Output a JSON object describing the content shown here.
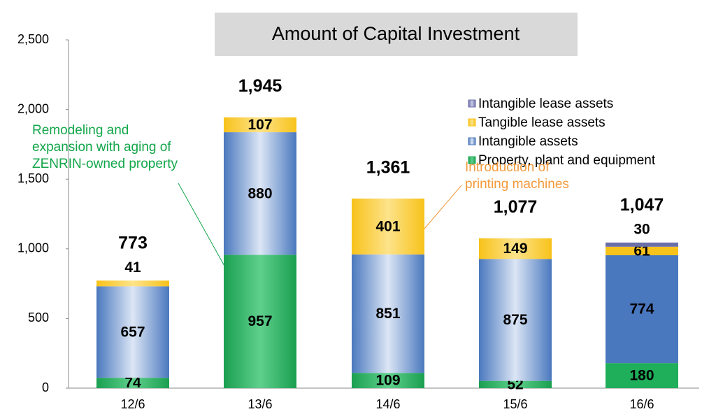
{
  "chart_data": {
    "type": "stacked_bar",
    "title": "Amount of Capital Investment",
    "categories": [
      "12/6",
      "13/6",
      "14/6",
      "15/6",
      "16/6"
    ],
    "series": [
      {
        "name": "Property, plant and equipment",
        "color": "#1fae5a",
        "values": [
          74,
          957,
          109,
          52,
          180
        ]
      },
      {
        "name": "Intangible assets",
        "color": "#4a78be",
        "values": [
          657,
          880,
          851,
          875,
          774
        ]
      },
      {
        "name": "Tangible lease assets",
        "color": "#f7c21a",
        "values": [
          41,
          107,
          401,
          149,
          61
        ]
      },
      {
        "name": "Intangible lease assets",
        "color": "#6b6fa8",
        "values": [
          null,
          null,
          null,
          null,
          30
        ]
      }
    ],
    "totals": [
      773,
      1945,
      1361,
      1077,
      1047
    ],
    "total_labels": [
      "773",
      "1,945",
      "1,361",
      "1,077",
      "1,047"
    ],
    "ylim": [
      0,
      2500
    ],
    "yticks": [
      0,
      500,
      {
        "value": 1000,
        "label": "1,000"
      },
      {
        "value": 1500,
        "label": "1,500"
      },
      {
        "value": 2000,
        "label": "2,000"
      },
      {
        "value": 2500,
        "label": "2,500"
      }
    ],
    "grid": false,
    "annotations": [
      {
        "lines": [
          "Remodeling and",
          "expansion with aging of",
          "ZENRIN-owned property"
        ],
        "color": "#12a64a"
      },
      {
        "lines": [
          "Introduction of",
          "printing machines"
        ],
        "color": "#f39a3c"
      }
    ]
  }
}
